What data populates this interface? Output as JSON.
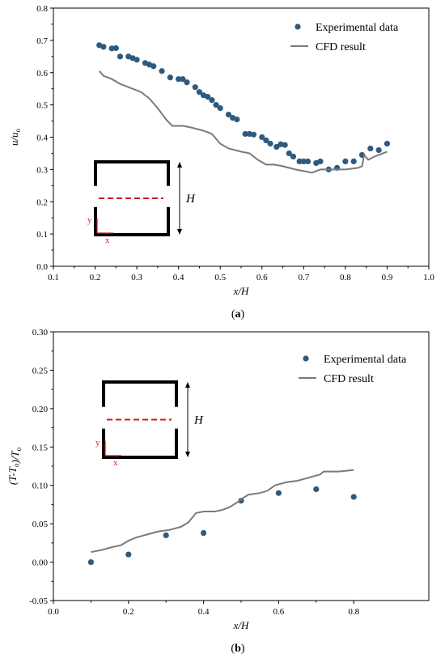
{
  "chart_data": [
    {
      "type": "scatter",
      "caption": "(a)",
      "xlabel": "x/H",
      "ylabel": "u/uₒ",
      "xlim": [
        0.1,
        1.0
      ],
      "ylim": [
        0.0,
        0.8
      ],
      "xticks": [
        "0.1",
        "0.2",
        "0.3",
        "0.4",
        "0.5",
        "0.6",
        "0.7",
        "0.8",
        "0.9",
        "1.0"
      ],
      "yticks": [
        "0.0",
        "0.1",
        "0.2",
        "0.3",
        "0.4",
        "0.5",
        "0.6",
        "0.7",
        "0.8"
      ],
      "legend_position": "top-right",
      "series": [
        {
          "name": "Experimental data",
          "kind": "scatter",
          "color": "#2e5a80",
          "points": [
            [
              0.21,
              0.685
            ],
            [
              0.22,
              0.68
            ],
            [
              0.24,
              0.675
            ],
            [
              0.25,
              0.676
            ],
            [
              0.26,
              0.65
            ],
            [
              0.28,
              0.65
            ],
            [
              0.29,
              0.645
            ],
            [
              0.3,
              0.64
            ],
            [
              0.32,
              0.63
            ],
            [
              0.33,
              0.625
            ],
            [
              0.34,
              0.62
            ],
            [
              0.36,
              0.605
            ],
            [
              0.38,
              0.585
            ],
            [
              0.4,
              0.58
            ],
            [
              0.41,
              0.58
            ],
            [
              0.42,
              0.57
            ],
            [
              0.44,
              0.555
            ],
            [
              0.45,
              0.54
            ],
            [
              0.46,
              0.53
            ],
            [
              0.47,
              0.525
            ],
            [
              0.48,
              0.515
            ],
            [
              0.49,
              0.5
            ],
            [
              0.5,
              0.49
            ],
            [
              0.52,
              0.47
            ],
            [
              0.53,
              0.46
            ],
            [
              0.54,
              0.455
            ],
            [
              0.56,
              0.41
            ],
            [
              0.57,
              0.41
            ],
            [
              0.58,
              0.408
            ],
            [
              0.6,
              0.4
            ],
            [
              0.61,
              0.39
            ],
            [
              0.62,
              0.38
            ],
            [
              0.635,
              0.37
            ],
            [
              0.645,
              0.378
            ],
            [
              0.655,
              0.376
            ],
            [
              0.665,
              0.35
            ],
            [
              0.675,
              0.34
            ],
            [
              0.69,
              0.325
            ],
            [
              0.7,
              0.325
            ],
            [
              0.71,
              0.325
            ],
            [
              0.73,
              0.32
            ],
            [
              0.74,
              0.325
            ],
            [
              0.76,
              0.3
            ],
            [
              0.78,
              0.305
            ],
            [
              0.8,
              0.325
            ],
            [
              0.82,
              0.325
            ],
            [
              0.84,
              0.345
            ],
            [
              0.86,
              0.365
            ],
            [
              0.88,
              0.36
            ],
            [
              0.9,
              0.38
            ]
          ]
        },
        {
          "name": "CFD result",
          "kind": "line",
          "color": "#7a7a7a",
          "points": [
            [
              0.21,
              0.605
            ],
            [
              0.22,
              0.59
            ],
            [
              0.24,
              0.58
            ],
            [
              0.26,
              0.565
            ],
            [
              0.28,
              0.555
            ],
            [
              0.31,
              0.54
            ],
            [
              0.33,
              0.52
            ],
            [
              0.35,
              0.49
            ],
            [
              0.37,
              0.455
            ],
            [
              0.385,
              0.435
            ],
            [
              0.41,
              0.435
            ],
            [
              0.43,
              0.43
            ],
            [
              0.46,
              0.42
            ],
            [
              0.48,
              0.41
            ],
            [
              0.5,
              0.38
            ],
            [
              0.52,
              0.365
            ],
            [
              0.55,
              0.355
            ],
            [
              0.57,
              0.35
            ],
            [
              0.59,
              0.33
            ],
            [
              0.61,
              0.315
            ],
            [
              0.63,
              0.315
            ],
            [
              0.65,
              0.31
            ],
            [
              0.68,
              0.3
            ],
            [
              0.7,
              0.295
            ],
            [
              0.72,
              0.29
            ],
            [
              0.74,
              0.3
            ],
            [
              0.76,
              0.3
            ],
            [
              0.78,
              0.3
            ],
            [
              0.8,
              0.3
            ],
            [
              0.83,
              0.305
            ],
            [
              0.84,
              0.31
            ],
            [
              0.845,
              0.345
            ],
            [
              0.855,
              0.33
            ],
            [
              0.87,
              0.34
            ],
            [
              0.9,
              0.355
            ]
          ]
        }
      ],
      "inset": {
        "dimension_label": "H",
        "x_label": "x",
        "y_label": "y"
      }
    },
    {
      "type": "scatter",
      "caption": "(b)",
      "xlabel": "x/H",
      "ylabel": "(T-Tₒ)/Tₒ",
      "xlim": [
        0.0,
        1.0
      ],
      "ylim": [
        -0.05,
        0.3
      ],
      "xticks": [
        "0.0",
        "0.2",
        "0.4",
        "0.6",
        "0.8"
      ],
      "yticks": [
        "-0.05",
        "0.00",
        "0.05",
        "0.10",
        "0.15",
        "0.20",
        "0.25",
        "0.30"
      ],
      "legend_position": "top-right",
      "series": [
        {
          "name": "Experimental data",
          "kind": "scatter",
          "color": "#2e5a80",
          "points": [
            [
              0.1,
              0.0
            ],
            [
              0.2,
              0.01
            ],
            [
              0.3,
              0.035
            ],
            [
              0.4,
              0.038
            ],
            [
              0.5,
              0.08
            ],
            [
              0.6,
              0.09
            ],
            [
              0.7,
              0.095
            ],
            [
              0.8,
              0.085
            ]
          ]
        },
        {
          "name": "CFD result",
          "kind": "line",
          "color": "#7a7a7a",
          "points": [
            [
              0.1,
              0.013
            ],
            [
              0.13,
              0.016
            ],
            [
              0.16,
              0.02
            ],
            [
              0.18,
              0.022
            ],
            [
              0.2,
              0.028
            ],
            [
              0.22,
              0.032
            ],
            [
              0.25,
              0.036
            ],
            [
              0.28,
              0.04
            ],
            [
              0.31,
              0.042
            ],
            [
              0.34,
              0.046
            ],
            [
              0.36,
              0.052
            ],
            [
              0.38,
              0.064
            ],
            [
              0.4,
              0.066
            ],
            [
              0.43,
              0.066
            ],
            [
              0.45,
              0.068
            ],
            [
              0.47,
              0.072
            ],
            [
              0.49,
              0.078
            ],
            [
              0.5,
              0.082
            ],
            [
              0.52,
              0.088
            ],
            [
              0.55,
              0.09
            ],
            [
              0.57,
              0.093
            ],
            [
              0.59,
              0.1
            ],
            [
              0.62,
              0.104
            ],
            [
              0.65,
              0.106
            ],
            [
              0.68,
              0.11
            ],
            [
              0.71,
              0.114
            ],
            [
              0.72,
              0.118
            ],
            [
              0.76,
              0.118
            ],
            [
              0.8,
              0.12
            ]
          ]
        }
      ],
      "inset": {
        "dimension_label": "H",
        "x_label": "x",
        "y_label": "y"
      }
    }
  ]
}
